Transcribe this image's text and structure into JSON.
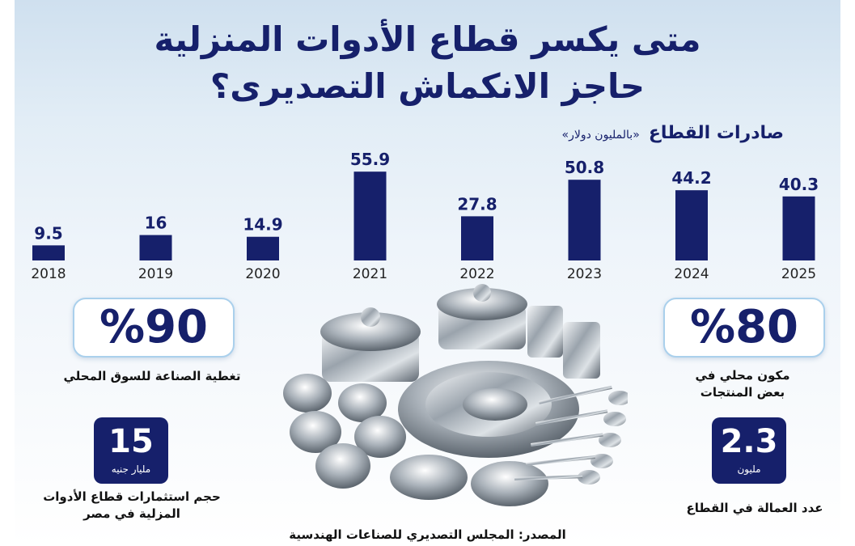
{
  "title_line1": "متى يكسر قطاع  الأدوات المنزلية",
  "title_line2": "حاجز الانكماش التصديرى؟",
  "chart_data": {
    "type": "bar",
    "title": "صادرات القطاع",
    "unit": "«بالمليون دولار»",
    "categories": [
      "2018",
      "2019",
      "2020",
      "2021",
      "2022",
      "2023",
      "2024",
      "2025"
    ],
    "values": [
      9.5,
      16,
      14.9,
      55.9,
      27.8,
      50.8,
      44.2,
      40.3
    ],
    "value_labels": [
      "9.5",
      "16",
      "14.9",
      "55.9",
      "27.8",
      "50.8",
      "44.2",
      "40.3"
    ],
    "bar_color": "#16206b",
    "ylim": [
      0,
      60
    ],
    "grid": false,
    "legend": "none"
  },
  "stats": {
    "local_coverage": {
      "value": "%90",
      "label": "تغطية الصناعة للسوق المحلي"
    },
    "local_component": {
      "value": "%80",
      "label_line1": "مكون محلي في",
      "label_line2": "بعض المنتجات"
    },
    "investments": {
      "value": "15",
      "unit": "مليار جنيه",
      "label_line1": "حجم استثمارات قطاع الأدوات",
      "label_line2": "المزلية في مصر"
    },
    "employment": {
      "value": "2.3",
      "unit": "مليون",
      "label": "عدد العمالة في القطاع"
    }
  },
  "source": "المصدر: المجلس التصديري للصناعات الهندسية",
  "colors": {
    "navy": "#16206b",
    "box_border": "#aad0ec"
  }
}
